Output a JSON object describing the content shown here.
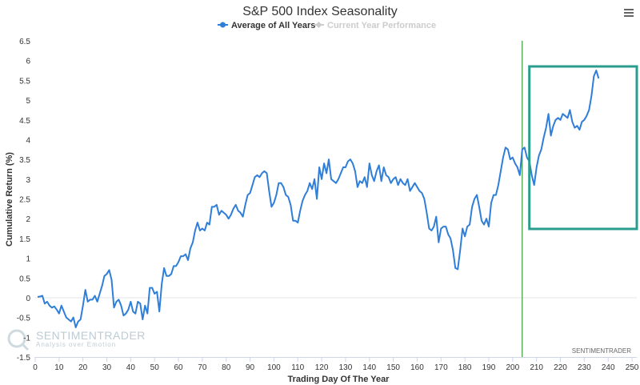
{
  "chart_data": {
    "type": "line",
    "title": "S&P 500 Index Seasonality",
    "xlabel": "Trading Day Of The Year",
    "ylabel": "Cumulative Return (%)",
    "xlim": [
      0,
      252
    ],
    "ylim": [
      -1.5,
      6.5
    ],
    "x_ticks": [
      0,
      10,
      20,
      30,
      40,
      50,
      60,
      70,
      80,
      90,
      100,
      110,
      120,
      130,
      140,
      150,
      160,
      170,
      180,
      190,
      200,
      210,
      220,
      230,
      240,
      250
    ],
    "y_ticks": [
      -1.5,
      -1,
      -0.5,
      0,
      0.5,
      1,
      1.5,
      2,
      2.5,
      3,
      3.5,
      4,
      4.5,
      5,
      5.5,
      6,
      6.5
    ],
    "grid": false,
    "legend": "top",
    "legend_entries": [
      {
        "label": "Average of All Years",
        "color": "#2f7ed8",
        "active": true
      },
      {
        "label": "Current Year Performance",
        "color": "#cccccc",
        "active": false
      }
    ],
    "vertical_line_x": 204,
    "highlight_x_range": [
      207,
      252
    ],
    "highlight_color": "#2a9d8f",
    "credit": "SENTIMENTRADER",
    "series": [
      {
        "name": "Average of All Years",
        "color": "#2f7ed8",
        "points": [
          [
            1,
            0.02
          ],
          [
            2,
            0.03
          ],
          [
            3,
            0.05
          ],
          [
            4,
            -0.15
          ],
          [
            5,
            -0.1
          ],
          [
            6,
            -0.2
          ],
          [
            7,
            -0.25
          ],
          [
            8,
            -0.22
          ],
          [
            9,
            -0.3
          ],
          [
            10,
            -0.4
          ],
          [
            11,
            -0.2
          ],
          [
            12,
            -0.35
          ],
          [
            13,
            -0.5
          ],
          [
            14,
            -0.55
          ],
          [
            15,
            -0.6
          ],
          [
            16,
            -0.5
          ],
          [
            17,
            -0.75
          ],
          [
            18,
            -0.6
          ],
          [
            19,
            -0.55
          ],
          [
            20,
            -0.2
          ],
          [
            21,
            0.2
          ],
          [
            22,
            -0.1
          ],
          [
            23,
            -0.05
          ],
          [
            24,
            -0.05
          ],
          [
            25,
            0.05
          ],
          [
            26,
            -0.1
          ],
          [
            27,
            0.1
          ],
          [
            28,
            0.3
          ],
          [
            29,
            0.55
          ],
          [
            30,
            0.6
          ],
          [
            31,
            0.7
          ],
          [
            32,
            0.45
          ],
          [
            33,
            -0.25
          ],
          [
            34,
            -0.1
          ],
          [
            35,
            -0.05
          ],
          [
            36,
            -0.2
          ],
          [
            37,
            -0.45
          ],
          [
            38,
            -0.4
          ],
          [
            39,
            -0.3
          ],
          [
            40,
            -0.1
          ],
          [
            41,
            -0.35
          ],
          [
            42,
            -0.4
          ],
          [
            43,
            -0.1
          ],
          [
            44,
            -0.15
          ],
          [
            45,
            -0.55
          ],
          [
            46,
            -0.2
          ],
          [
            47,
            -0.4
          ],
          [
            48,
            0.25
          ],
          [
            49,
            0.25
          ],
          [
            50,
            0.1
          ],
          [
            51,
            0.15
          ],
          [
            52,
            -0.35
          ],
          [
            53,
            0.35
          ],
          [
            54,
            0.75
          ],
          [
            55,
            0.55
          ],
          [
            56,
            0.55
          ],
          [
            57,
            0.6
          ],
          [
            58,
            0.8
          ],
          [
            59,
            0.8
          ],
          [
            60,
            0.9
          ],
          [
            61,
            1.05
          ],
          [
            62,
            1.05
          ],
          [
            63,
            1.1
          ],
          [
            64,
            0.95
          ],
          [
            65,
            1.25
          ],
          [
            66,
            1.4
          ],
          [
            67,
            1.7
          ],
          [
            68,
            1.9
          ],
          [
            69,
            1.7
          ],
          [
            70,
            1.75
          ],
          [
            71,
            1.7
          ],
          [
            72,
            1.9
          ],
          [
            73,
            1.85
          ],
          [
            74,
            2.3
          ],
          [
            75,
            2.3
          ],
          [
            76,
            2.35
          ],
          [
            77,
            2.1
          ],
          [
            78,
            2.2
          ],
          [
            79,
            2.15
          ],
          [
            80,
            2.1
          ],
          [
            81,
            2.0
          ],
          [
            82,
            2.1
          ],
          [
            83,
            2.25
          ],
          [
            84,
            2.35
          ],
          [
            85,
            2.2
          ],
          [
            86,
            2.15
          ],
          [
            87,
            2.05
          ],
          [
            88,
            2.35
          ],
          [
            89,
            2.6
          ],
          [
            90,
            2.65
          ],
          [
            91,
            2.85
          ],
          [
            92,
            3.05
          ],
          [
            93,
            3.1
          ],
          [
            94,
            3.05
          ],
          [
            95,
            3.15
          ],
          [
            96,
            3.2
          ],
          [
            97,
            3.15
          ],
          [
            98,
            2.7
          ],
          [
            99,
            2.3
          ],
          [
            100,
            2.4
          ],
          [
            101,
            2.6
          ],
          [
            102,
            2.9
          ],
          [
            103,
            2.9
          ],
          [
            104,
            2.8
          ],
          [
            105,
            2.6
          ],
          [
            106,
            2.55
          ],
          [
            107,
            2.35
          ],
          [
            108,
            1.95
          ],
          [
            109,
            1.95
          ],
          [
            110,
            1.9
          ],
          [
            111,
            2.2
          ],
          [
            112,
            2.45
          ],
          [
            113,
            2.6
          ],
          [
            114,
            2.7
          ],
          [
            115,
            2.9
          ],
          [
            116,
            2.75
          ],
          [
            117,
            3.0
          ],
          [
            118,
            2.5
          ],
          [
            119,
            3.3
          ],
          [
            120,
            3.0
          ],
          [
            121,
            3.4
          ],
          [
            122,
            3.15
          ],
          [
            123,
            3.5
          ],
          [
            124,
            3.0
          ],
          [
            125,
            2.95
          ],
          [
            126,
            2.9
          ],
          [
            127,
            3.0
          ],
          [
            128,
            3.15
          ],
          [
            129,
            3.3
          ],
          [
            130,
            3.3
          ],
          [
            131,
            3.45
          ],
          [
            132,
            3.5
          ],
          [
            133,
            3.4
          ],
          [
            134,
            3.2
          ],
          [
            135,
            2.8
          ],
          [
            136,
            2.95
          ],
          [
            137,
            2.9
          ],
          [
            138,
            3.05
          ],
          [
            139,
            2.8
          ],
          [
            140,
            3.4
          ],
          [
            141,
            3.1
          ],
          [
            142,
            2.95
          ],
          [
            143,
            3.2
          ],
          [
            144,
            3.35
          ],
          [
            145,
            2.95
          ],
          [
            146,
            3.3
          ],
          [
            147,
            3.1
          ],
          [
            148,
            3.05
          ],
          [
            149,
            2.9
          ],
          [
            150,
            3.0
          ],
          [
            151,
            3.05
          ],
          [
            152,
            2.85
          ],
          [
            153,
            3.0
          ],
          [
            154,
            2.9
          ],
          [
            155,
            2.85
          ],
          [
            156,
            3.0
          ],
          [
            157,
            2.7
          ],
          [
            158,
            2.8
          ],
          [
            159,
            2.9
          ],
          [
            160,
            2.8
          ],
          [
            161,
            2.7
          ],
          [
            162,
            2.65
          ],
          [
            163,
            2.5
          ],
          [
            164,
            2.15
          ],
          [
            165,
            1.75
          ],
          [
            166,
            1.7
          ],
          [
            167,
            1.8
          ],
          [
            168,
            2.05
          ],
          [
            169,
            1.4
          ],
          [
            170,
            1.75
          ],
          [
            171,
            1.8
          ],
          [
            172,
            1.8
          ],
          [
            173,
            1.6
          ],
          [
            174,
            1.5
          ],
          [
            175,
            1.2
          ],
          [
            176,
            0.75
          ],
          [
            177,
            0.72
          ],
          [
            178,
            1.2
          ],
          [
            179,
            1.75
          ],
          [
            180,
            1.55
          ],
          [
            181,
            1.8
          ],
          [
            182,
            1.85
          ],
          [
            183,
            2.3
          ],
          [
            184,
            2.5
          ],
          [
            185,
            2.6
          ],
          [
            186,
            2.3
          ],
          [
            187,
            1.95
          ],
          [
            188,
            1.85
          ],
          [
            189,
            2.0
          ],
          [
            190,
            1.8
          ],
          [
            191,
            2.4
          ],
          [
            192,
            2.6
          ],
          [
            193,
            2.6
          ],
          [
            194,
            2.85
          ],
          [
            195,
            3.2
          ],
          [
            196,
            3.55
          ],
          [
            197,
            3.8
          ],
          [
            198,
            3.75
          ],
          [
            199,
            3.5
          ],
          [
            200,
            3.55
          ],
          [
            201,
            3.4
          ],
          [
            202,
            3.3
          ],
          [
            203,
            3.1
          ],
          [
            204,
            3.75
          ],
          [
            205,
            3.8
          ],
          [
            206,
            3.55
          ],
          [
            207,
            3.45
          ],
          [
            208,
            3.1
          ],
          [
            209,
            2.85
          ],
          [
            210,
            3.3
          ],
          [
            211,
            3.6
          ],
          [
            212,
            3.75
          ],
          [
            213,
            4.05
          ],
          [
            214,
            4.3
          ],
          [
            215,
            4.65
          ],
          [
            216,
            4.1
          ],
          [
            217,
            4.35
          ],
          [
            218,
            4.5
          ],
          [
            219,
            4.55
          ],
          [
            220,
            4.5
          ],
          [
            221,
            4.65
          ],
          [
            222,
            4.6
          ],
          [
            223,
            4.55
          ],
          [
            224,
            4.75
          ],
          [
            225,
            4.45
          ],
          [
            226,
            4.3
          ],
          [
            227,
            4.35
          ],
          [
            228,
            4.25
          ],
          [
            229,
            4.45
          ],
          [
            230,
            4.5
          ],
          [
            231,
            4.6
          ],
          [
            232,
            4.75
          ],
          [
            233,
            5.1
          ],
          [
            234,
            5.6
          ],
          [
            235,
            5.75
          ],
          [
            236,
            5.55
          ]
        ]
      }
    ]
  }
}
